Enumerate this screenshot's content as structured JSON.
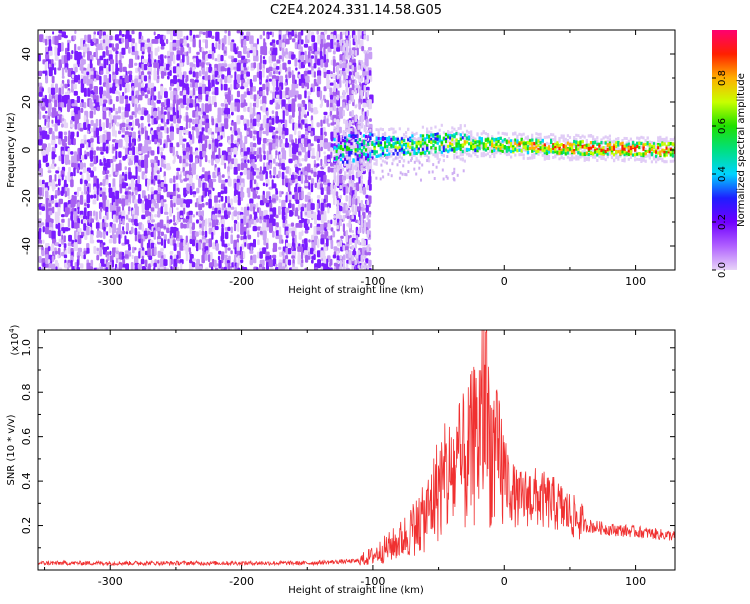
{
  "title": "C2E4.2024.331.14.58.G05",
  "chart_data": [
    {
      "type": "heatmap",
      "title": "C2E4.2024.331.14.58.G05",
      "xlabel": "Height of straight line (km)",
      "ylabel": "Frequency (Hz)",
      "xlim": [
        -355,
        130
      ],
      "ylim": [
        -50,
        50
      ],
      "xticks": [
        "-300",
        "-200",
        "-100",
        "0",
        "100"
      ],
      "yticks": [
        "-40",
        "-20",
        "0",
        "20",
        "40"
      ],
      "colorbar": {
        "label": "Normalized spectral amplitude",
        "range": [
          0,
          1
        ],
        "ticks": [
          "0.0",
          "0.2",
          "0.4",
          "0.6",
          "0.8"
        ],
        "colors": [
          "#e8d4f8",
          "#9b30ff",
          "#1e1eff",
          "#00d4ff",
          "#00e050",
          "#b8ff00",
          "#ffe000",
          "#ff8000",
          "#ff0000",
          "#ff0060"
        ]
      },
      "regions": [
        {
          "x_from": -355,
          "x_to": -103,
          "freq_band": [
            -50,
            50
          ],
          "amplitude": 0.15,
          "description_color": "#8a2be2"
        },
        {
          "x_from": -130,
          "x_to": 130,
          "freq_center": [
            [
              -130,
              0
            ],
            [
              -80,
              2
            ],
            [
              -40,
              3
            ],
            [
              0,
              2
            ],
            [
              50,
              1
            ],
            [
              130,
              0
            ]
          ],
          "band_halfwidth_hz": 4,
          "peak_amplitude": 0.95
        }
      ]
    },
    {
      "type": "line",
      "xlabel": "Height of straight line (km)",
      "ylabel": "SNR (10 * v/v)",
      "y_multiplier": "(x10",
      "y_multiplier_exp": "4",
      "y_multiplier_close": ")",
      "xlim": [
        -355,
        130
      ],
      "ylim": [
        0,
        1.08
      ],
      "xticks": [
        "-300",
        "-200",
        "-100",
        "0",
        "100"
      ],
      "yticks": [
        "0.2",
        "0.4",
        "0.6",
        "0.8",
        "1.0"
      ],
      "series": [
        {
          "color": "#f03030",
          "x": [
            -355,
            -300,
            -250,
            -200,
            -150,
            -110,
            -100,
            -80,
            -60,
            -50,
            -40,
            -30,
            -20,
            -15,
            -10,
            0,
            10,
            20,
            30,
            40,
            50,
            60,
            80,
            100,
            130
          ],
          "y": [
            0.03,
            0.03,
            0.03,
            0.03,
            0.03,
            0.04,
            0.06,
            0.12,
            0.22,
            0.35,
            0.4,
            0.45,
            0.55,
            0.7,
            0.5,
            0.4,
            0.3,
            0.32,
            0.3,
            0.28,
            0.24,
            0.2,
            0.18,
            0.17,
            0.15
          ]
        }
      ]
    }
  ]
}
